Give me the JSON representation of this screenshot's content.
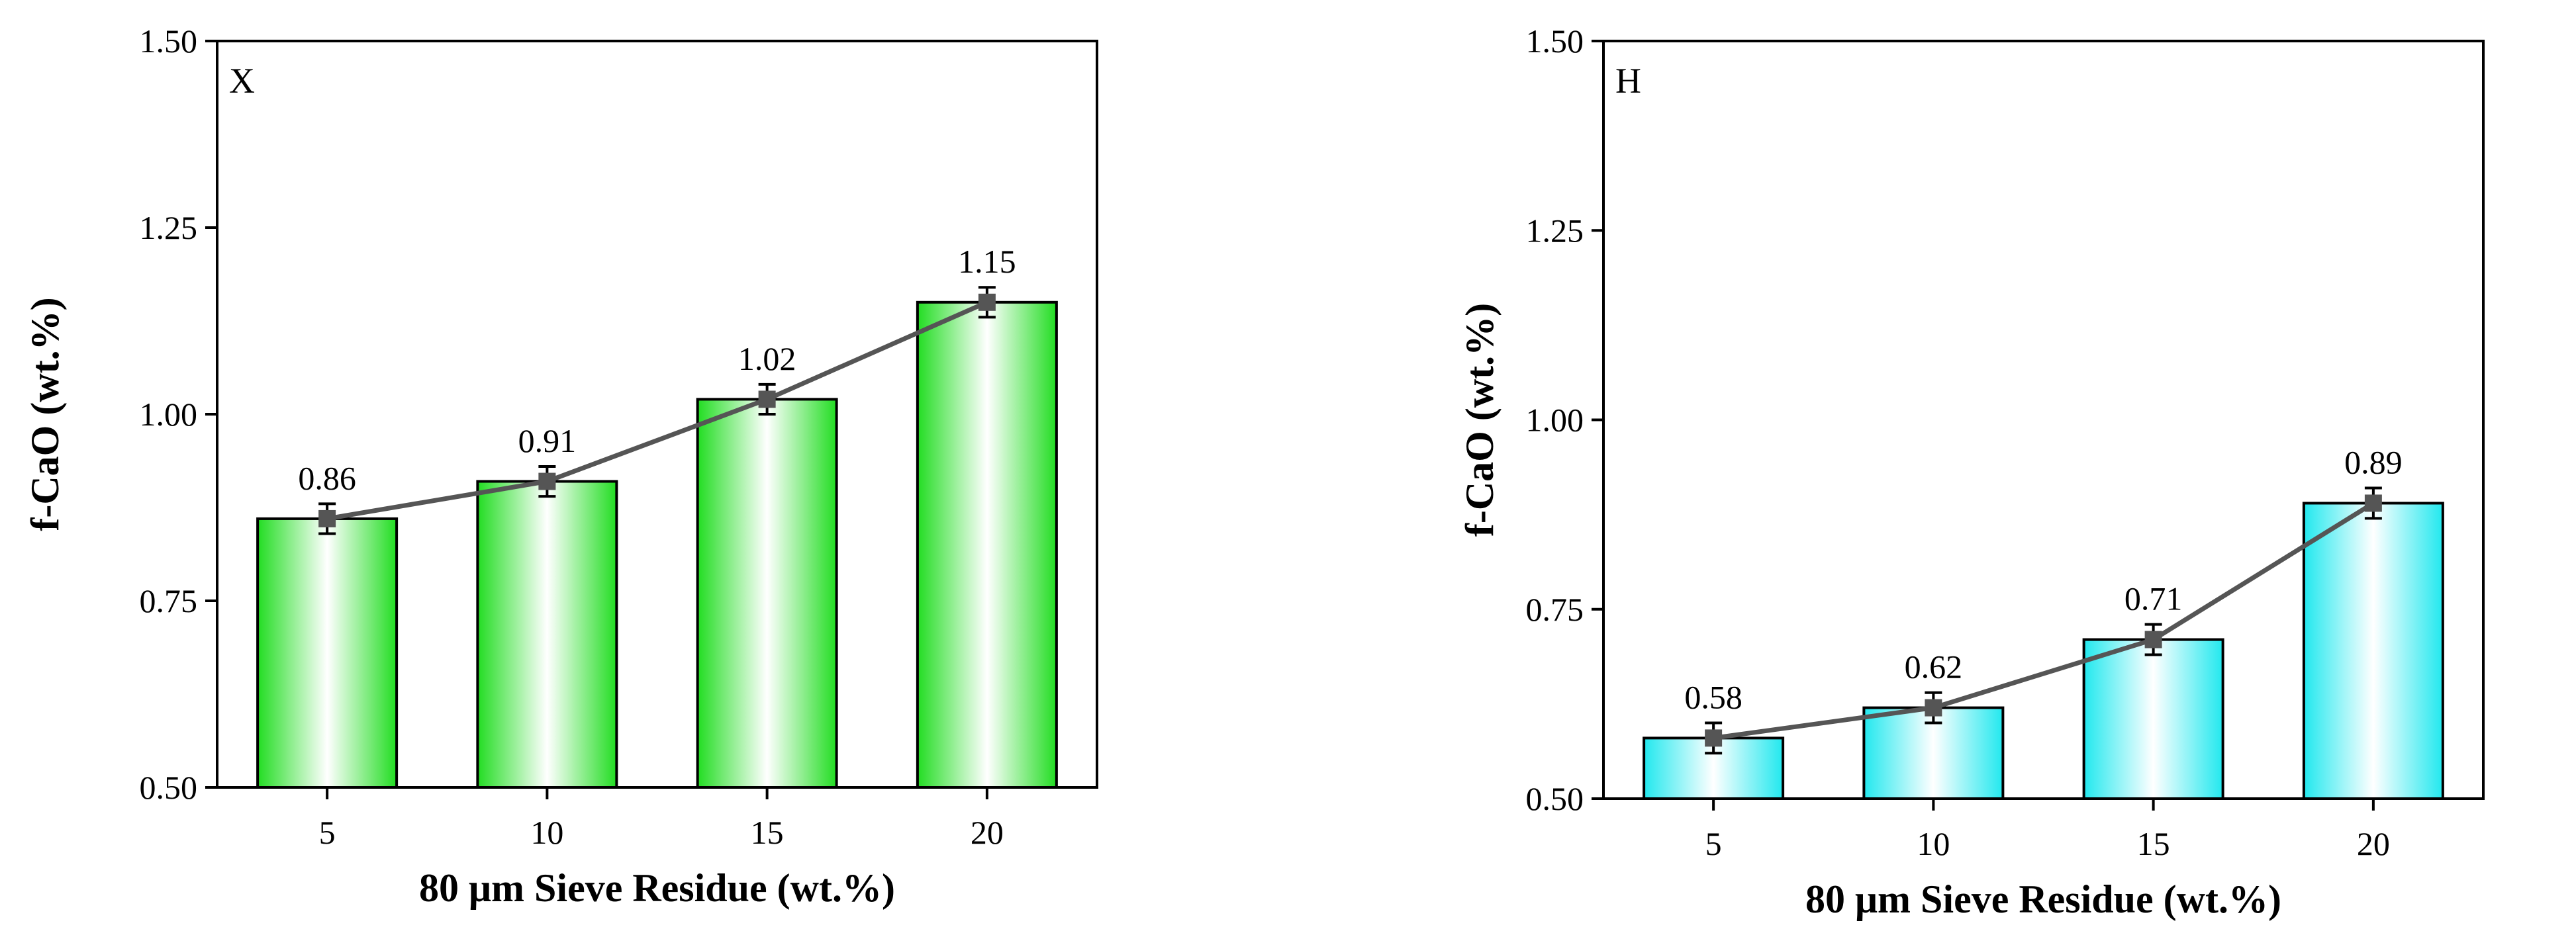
{
  "chart_data": [
    {
      "type": "bar",
      "panel_label": "X",
      "categories": [
        "5",
        "10",
        "15",
        "20"
      ],
      "values": [
        0.86,
        0.91,
        1.02,
        1.15
      ],
      "value_labels": [
        "0.86",
        "0.91",
        "1.02",
        "1.15"
      ],
      "error": [
        0.02,
        0.02,
        0.02,
        0.02
      ],
      "overlay_line": true,
      "xlabel": "80 μm Sieve Residue (wt.%)",
      "ylabel": "f-CaO (wt.%)",
      "ylim": [
        0.5,
        1.5
      ],
      "yticks": [
        "0.50",
        "0.75",
        "1.00",
        "1.25",
        "1.50"
      ],
      "bar_color": "#22dd22",
      "line_color": "#555555"
    },
    {
      "type": "bar",
      "panel_label": "H",
      "categories": [
        "5",
        "10",
        "15",
        "20"
      ],
      "values": [
        0.58,
        0.62,
        0.71,
        0.89
      ],
      "value_labels": [
        "0.58",
        "0.62",
        "0.71",
        "0.89"
      ],
      "error": [
        0.02,
        0.02,
        0.02,
        0.02
      ],
      "overlay_line": true,
      "xlabel": "80 μm Sieve Residue (wt.%)",
      "ylabel": "f-CaO (wt.%)",
      "ylim": [
        0.5,
        1.5
      ],
      "yticks": [
        "0.50",
        "0.75",
        "1.00",
        "1.25",
        "1.50"
      ],
      "bar_color": "#22e8ee",
      "line_color": "#555555"
    }
  ]
}
